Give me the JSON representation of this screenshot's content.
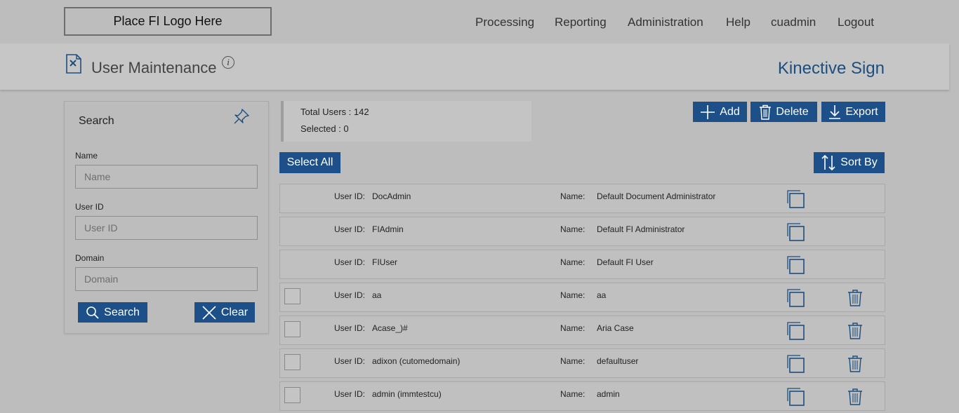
{
  "header": {
    "logo_text": "Place FI Logo Here",
    "nav": [
      "Processing",
      "Reporting",
      "Administration",
      "Help",
      "cuadmin",
      "Logout"
    ]
  },
  "title_bar": {
    "page_title": "User Maintenance",
    "info_glyph": "i",
    "brand": "Kinective Sign"
  },
  "search_panel": {
    "title": "Search",
    "name_label": "Name",
    "name_placeholder": "Name",
    "userid_label": "User ID",
    "userid_placeholder": "User ID",
    "domain_label": "Domain",
    "domain_placeholder": "Domain",
    "search_button": "Search",
    "clear_button": "Clear"
  },
  "summary": {
    "total_users": "Total Users : 142",
    "selected": "Selected : 0"
  },
  "toolbar": {
    "add": "Add",
    "delete": "Delete",
    "export": "Export",
    "select_all": "Select All",
    "sort_by": "Sort By"
  },
  "list": {
    "user_id_label": "User ID:",
    "name_label": "Name:",
    "rows": [
      {
        "user_id": "DocAdmin",
        "name": "Default Document Administrator",
        "selectable": false
      },
      {
        "user_id": "FIAdmin",
        "name": "Default FI Administrator",
        "selectable": false
      },
      {
        "user_id": "FIUser",
        "name": "Default FI User",
        "selectable": false
      },
      {
        "user_id": "aa",
        "name": "aa",
        "selectable": true
      },
      {
        "user_id": "Acase_)#",
        "name": "Aria Case",
        "selectable": true
      },
      {
        "user_id": "adixon (cutomedomain)",
        "name": "defaultuser",
        "selectable": true
      },
      {
        "user_id": "admin (immtestcu)",
        "name": "admin",
        "selectable": true
      }
    ]
  },
  "colors": {
    "accent": "#1d5089",
    "brand": "#1d4e7e",
    "background": "#bdbdbd"
  }
}
